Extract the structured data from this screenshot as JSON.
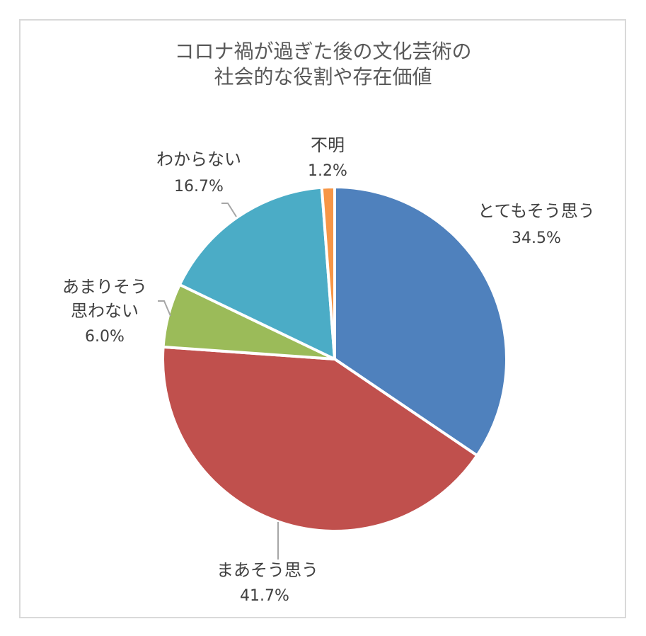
{
  "chart_data": {
    "type": "pie",
    "title_lines": [
      "コロナ禍が過ぎた後の文化芸術の",
      "社会的な役割や存在価値"
    ],
    "slices": [
      {
        "label": "とてもそう思う",
        "value": 34.5,
        "pct_label": "34.5%",
        "color": "#4f81bd"
      },
      {
        "label": "まあそう思う",
        "value": 41.7,
        "pct_label": "41.7%",
        "color": "#c0504d"
      },
      {
        "label": "あまりそう思わない",
        "label_lines": [
          "あまりそう",
          "思わない"
        ],
        "value": 6.0,
        "pct_label": "6.0%",
        "color": "#9bbb59"
      },
      {
        "label": "わからない",
        "value": 16.7,
        "pct_label": "16.7%",
        "color": "#4bacc6"
      },
      {
        "label": "不明",
        "value": 1.2,
        "pct_label": "1.2%",
        "color": "#f79646"
      }
    ],
    "start_angle_deg": 0,
    "direction": "clockwise",
    "legend": "none"
  }
}
